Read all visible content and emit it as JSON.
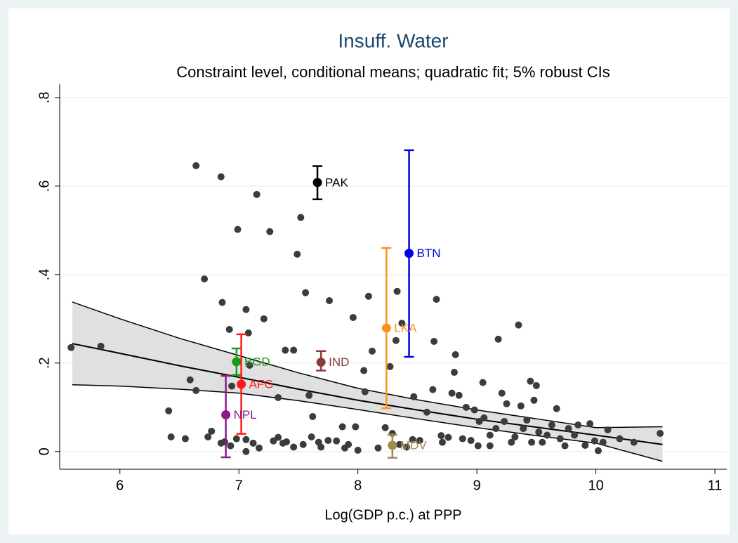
{
  "chart_data": {
    "type": "scatter",
    "title": "Insuff. Water",
    "subtitle": "Constraint level, conditional means; quadratic fit; 5% robust CIs",
    "x_label": "Log(GDP p.c.) at PPP",
    "xlim": [
      5.494,
      11.1
    ],
    "ylim": [
      -0.04,
      0.83
    ],
    "xticks": [
      6,
      7,
      8,
      9,
      10,
      11
    ],
    "yticks": [
      {
        "value": 0,
        "label": "0"
      },
      {
        "value": 0.2,
        "label": ".2"
      },
      {
        "value": 0.4,
        "label": ".4"
      },
      {
        "value": 0.6,
        "label": ".6"
      },
      {
        "value": 0.8,
        "label": ".8"
      }
    ],
    "grid": true,
    "points": {
      "color": "#3c3c3c",
      "x": [
        5.59,
        5.84,
        6.41,
        6.43,
        6.55,
        6.59,
        6.64,
        6.64,
        6.71,
        6.74,
        6.77,
        6.85,
        6.86,
        6.85,
        6.88,
        6.92,
        6.93,
        6.94,
        6.98,
        6.99,
        7.06,
        7.08,
        7.06,
        7.09,
        7.06,
        7.15,
        7.26,
        7.12,
        7.17,
        7.21,
        7.29,
        7.33,
        7.33,
        7.37,
        7.4,
        7.46,
        7.49,
        7.52,
        7.54,
        7.39,
        7.46,
        7.56,
        7.59,
        7.61,
        7.62,
        7.67,
        7.69,
        7.75,
        7.76,
        7.82,
        7.87,
        7.89,
        7.92,
        7.96,
        7.98,
        8.0,
        8.05,
        8.06,
        8.09,
        8.12,
        8.17,
        8.23,
        8.27,
        8.29,
        8.32,
        8.33,
        8.35,
        8.37,
        8.41,
        8.46,
        8.47,
        8.52,
        8.58,
        8.63,
        8.64,
        8.66,
        8.71,
        8.76,
        8.79,
        8.81,
        8.82,
        8.85,
        8.88,
        8.91,
        8.95,
        8.98,
        9.01,
        9.06,
        9.05,
        9.11,
        9.16,
        9.18,
        9.21,
        9.23,
        9.25,
        9.29,
        9.32,
        9.35,
        9.37,
        9.39,
        9.42,
        9.45,
        9.48,
        9.5,
        9.52,
        9.55,
        9.59,
        9.63,
        9.67,
        9.7,
        9.74,
        9.77,
        9.82,
        9.85,
        9.91,
        9.95,
        9.99,
        10.02,
        10.06,
        10.1,
        10.2,
        10.32,
        10.54,
        8.7,
        9.11,
        9.46,
        9.02
      ],
      "y": [
        0.235,
        0.238,
        0.092,
        0.033,
        0.029,
        0.162,
        0.138,
        0.646,
        0.39,
        0.033,
        0.046,
        0.621,
        0.337,
        0.019,
        0.022,
        0.276,
        0.013,
        0.148,
        0.029,
        0.502,
        0.321,
        0.268,
        0.0,
        0.195,
        0.027,
        0.581,
        0.497,
        0.019,
        0.008,
        0.3,
        0.024,
        0.032,
        0.122,
        0.019,
        0.022,
        0.01,
        0.446,
        0.529,
        0.016,
        0.229,
        0.229,
        0.359,
        0.127,
        0.033,
        0.079,
        0.021,
        0.01,
        0.025,
        0.341,
        0.024,
        0.056,
        0.008,
        0.016,
        0.303,
        0.056,
        0.003,
        0.183,
        0.135,
        0.351,
        0.227,
        0.008,
        0.054,
        0.192,
        0.041,
        0.251,
        0.362,
        0.016,
        0.29,
        0.01,
        0.027,
        0.124,
        0.025,
        0.089,
        0.14,
        0.249,
        0.344,
        0.021,
        0.032,
        0.132,
        0.179,
        0.219,
        0.127,
        0.029,
        0.1,
        0.025,
        0.094,
        0.013,
        0.076,
        0.156,
        0.037,
        0.052,
        0.254,
        0.132,
        0.068,
        0.108,
        0.021,
        0.033,
        0.286,
        0.103,
        0.052,
        0.071,
        0.159,
        0.116,
        0.149,
        0.044,
        0.021,
        0.037,
        0.06,
        0.097,
        0.029,
        0.013,
        0.052,
        0.037,
        0.06,
        0.014,
        0.063,
        0.024,
        0.002,
        0.021,
        0.049,
        0.029,
        0.021,
        0.041,
        0.036,
        0.013,
        0.021,
        0.068
      ]
    },
    "fit": {
      "color": "#000000",
      "band_color": "#e0e0e0",
      "x": [
        5.6,
        6,
        6.5,
        7,
        7.5,
        8,
        8.5,
        9,
        9.5,
        10,
        10.56
      ],
      "y": [
        0.244,
        0.222,
        0.194,
        0.168,
        0.141,
        0.116,
        0.094,
        0.073,
        0.055,
        0.037,
        0.016
      ],
      "upper": [
        0.338,
        0.3,
        0.256,
        0.217,
        0.178,
        0.143,
        0.117,
        0.094,
        0.074,
        0.054,
        0.056
      ],
      "lower": [
        0.151,
        0.148,
        0.141,
        0.132,
        0.115,
        0.095,
        0.074,
        0.054,
        0.036,
        0.019,
        -0.022
      ]
    },
    "highlighted": [
      {
        "label": "PAK",
        "color": "#000000",
        "x": 7.66,
        "y": 0.608,
        "ci_low": 0.57,
        "ci_high": 0.645
      },
      {
        "label": "BTN",
        "color": "#0000e6",
        "x": 8.43,
        "y": 0.448,
        "ci_low": 0.214,
        "ci_high": 0.681
      },
      {
        "label": "LKA",
        "color": "#f7941d",
        "x": 8.24,
        "y": 0.279,
        "ci_low": 0.098,
        "ci_high": 0.46
      },
      {
        "label": "IND",
        "color": "#8b3a3a",
        "x": 7.69,
        "y": 0.202,
        "ci_low": 0.183,
        "ci_high": 0.227
      },
      {
        "label": "BGD",
        "color": "#1a9a1a",
        "x": 6.98,
        "y": 0.203,
        "ci_low": 0.173,
        "ci_high": 0.233
      },
      {
        "label": "AFG",
        "color": "#ff1a1a",
        "x": 7.02,
        "y": 0.152,
        "ci_low": 0.04,
        "ci_high": 0.265
      },
      {
        "label": "NPL",
        "color": "#8b1a8b",
        "x": 6.89,
        "y": 0.083,
        "ci_low": -0.013,
        "ci_high": 0.171
      },
      {
        "label": "MDV",
        "color": "#a08a4e",
        "x": 8.29,
        "y": 0.014,
        "ci_low": -0.014,
        "ci_high": 0.038
      }
    ]
  }
}
